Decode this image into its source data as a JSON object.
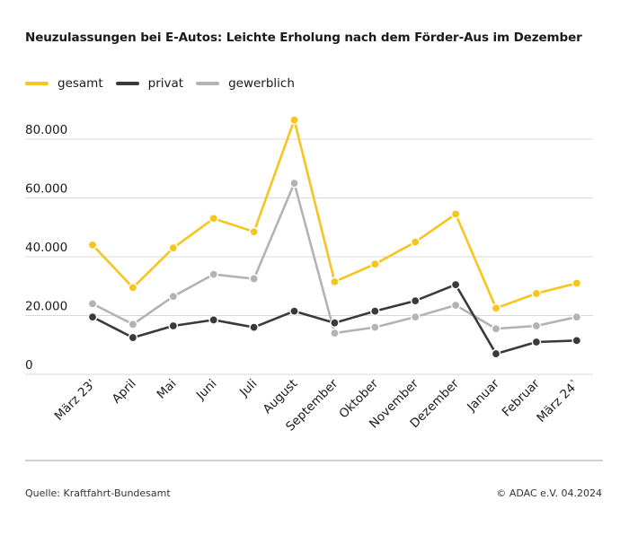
{
  "chart_data": {
    "type": "line",
    "title": "Neuzulassungen bei E-Autos: Leichte Erholung nach dem Förder-Aus im Dezember",
    "categories": [
      "März 23'",
      "April",
      "Mai",
      "Juni",
      "Juli",
      "August",
      "September",
      "Oktober",
      "November",
      "Dezember",
      "Januar",
      "Februar",
      "März 24`"
    ],
    "series": [
      {
        "name": "gesamt",
        "color": "#f6c51e",
        "values": [
          44000,
          29500,
          43000,
          53000,
          48500,
          86500,
          31500,
          37500,
          45000,
          54500,
          22500,
          27500,
          31000
        ]
      },
      {
        "name": "privat",
        "color": "#3a3a3a",
        "values": [
          19500,
          12500,
          16500,
          18500,
          16000,
          21500,
          17500,
          21500,
          25000,
          30500,
          7000,
          11000,
          11500
        ]
      },
      {
        "name": "gewerblich",
        "color": "#b3b3b3",
        "values": [
          24000,
          17000,
          26500,
          34000,
          32500,
          65000,
          14000,
          16000,
          19500,
          23500,
          15500,
          16500,
          19500
        ]
      }
    ],
    "yticks": [
      "0",
      "20.000",
      "40.000",
      "60.000",
      "80.000"
    ],
    "ytick_values": [
      0,
      20000,
      40000,
      60000,
      80000
    ],
    "ylim": [
      0,
      90000
    ],
    "grid": true,
    "legend_position": "top-left"
  },
  "footer": {
    "source": "Quelle: Kraftfahrt-Bundesamt",
    "copyright": "© ADAC e.V. 04.2024"
  }
}
